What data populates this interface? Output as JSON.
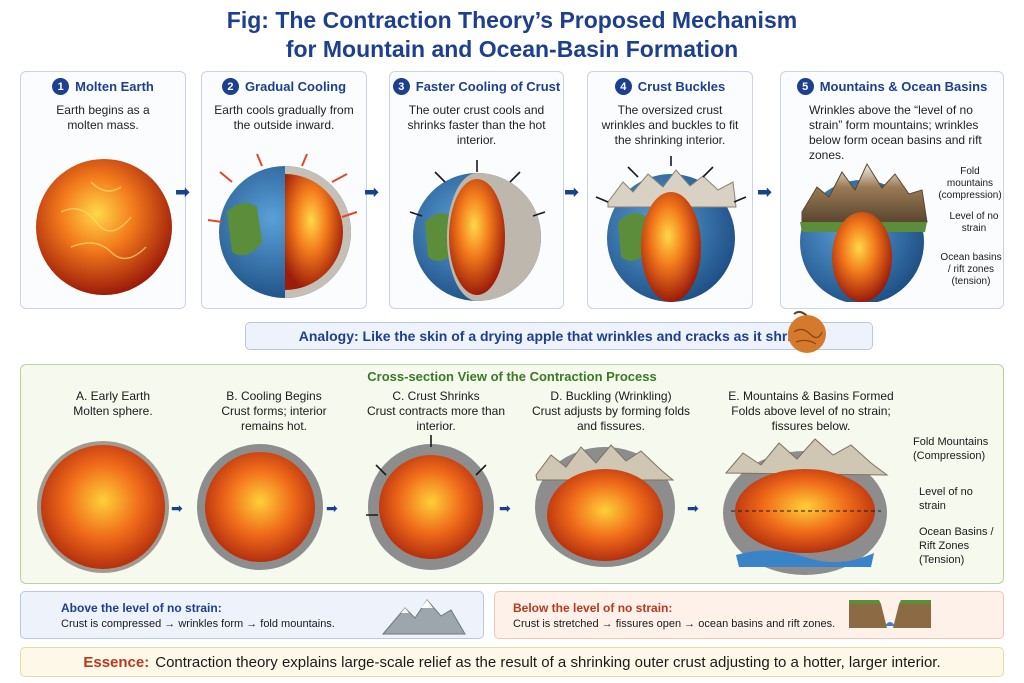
{
  "title_line1": "Fig: The Contraction Theory’s Proposed Mechanism",
  "title_line2": "for Mountain and Ocean-Basin Formation",
  "stages": [
    {
      "num": "1",
      "title": "Molten Earth",
      "desc": "Earth begins as a molten mass."
    },
    {
      "num": "2",
      "title": "Gradual Cooling",
      "desc": "Earth cools gradually from the outside inward."
    },
    {
      "num": "3",
      "title": "Faster Cooling of Crust",
      "desc": "The outer crust cools and shrinks faster than the hot interior."
    },
    {
      "num": "4",
      "title": "Crust Buckles",
      "desc": "The oversized crust wrinkles and buckles to fit the shrinking interior."
    },
    {
      "num": "5",
      "title": "Mountains & Ocean Basins",
      "desc": "Wrinkles above the “level of no strain” form mountains; wrinkles below form ocean basins and rift zones."
    }
  ],
  "stage5_labels": {
    "fold": "Fold mountains (compression)",
    "level": "Level of no strain",
    "ocean": "Ocean basins / rift zones (tension)"
  },
  "analogy": "Analogy: Like the skin of a drying apple that wrinkles and cracks as it shrinks.",
  "cross_section": {
    "title": "Cross-section View of the Contraction Process",
    "cols": [
      {
        "t": "A. Early Earth",
        "d": "Molten sphere."
      },
      {
        "t": "B. Cooling Begins",
        "d": "Crust forms; interior remains hot."
      },
      {
        "t": "C. Crust Shrinks",
        "d": "Crust contracts more than interior."
      },
      {
        "t": "D. Buckling (Wrinkling)",
        "d": "Crust adjusts by forming folds and fissures."
      },
      {
        "t": "E. Mountains & Basins Formed",
        "d": "Folds above level of no strain; fissures below."
      }
    ],
    "labels": {
      "fold": "Fold Mountains (Compression)",
      "level": "Level of no strain",
      "ocean": "Ocean Basins / Rift Zones (Tension)"
    }
  },
  "above": {
    "heading": "Above the level of no strain:",
    "body": "Crust is compressed → wrinkles form → fold mountains."
  },
  "below": {
    "heading": "Below the level of no strain:",
    "body": "Crust is stretched → fissures open → ocean basins and rift zones."
  },
  "essence": {
    "key": "Essence:",
    "text": "Contraction theory explains large-scale relief as the result of a shrinking outer crust adjusting to a hotter, larger interior."
  },
  "colors": {
    "navy": "#1d3f8f",
    "lava": "#e8581b",
    "crust": "#8f8f8f",
    "green": "#3a7a23",
    "red": "#b83a1e"
  }
}
